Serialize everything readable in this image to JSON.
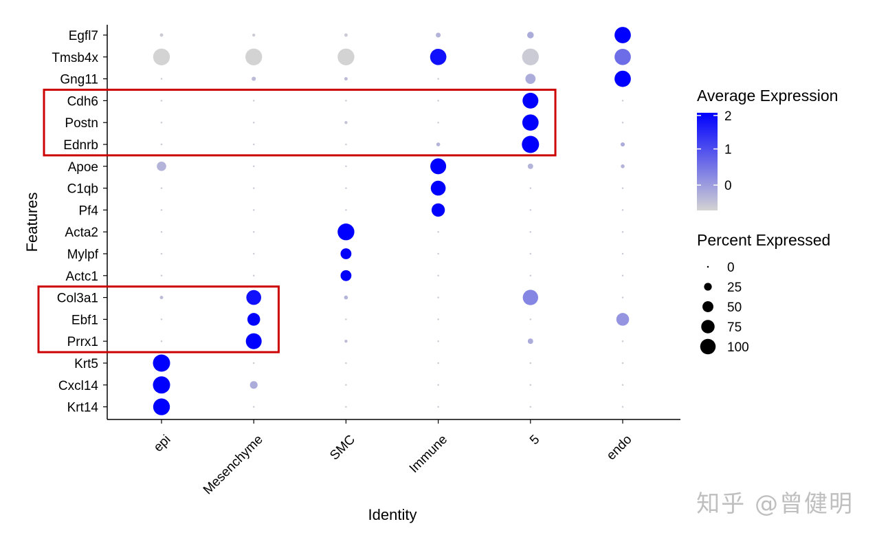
{
  "chart_data": {
    "type": "scatter",
    "subtype": "dot-plot",
    "title": "",
    "xlabel": "Identity",
    "ylabel": "Features",
    "categories": [
      "epi",
      "Mesenchyme",
      "SMC",
      "Immune",
      "5",
      "endo"
    ],
    "features": [
      "Egfl7",
      "Tmsb4x",
      "Gng11",
      "Cdh6",
      "Postn",
      "Ednrb",
      "Apoe",
      "C1qb",
      "Pf4",
      "Acta2",
      "Mylpf",
      "Actc1",
      "Col3a1",
      "Ebf1",
      "Prrx1",
      "Krt5",
      "Cxcl14",
      "Krt14"
    ],
    "points": [
      {
        "feature": "Egfl7",
        "values": [
          [
            -0.6,
            4
          ],
          [
            -0.6,
            3
          ],
          [
            -0.6,
            4
          ],
          [
            -0.3,
            8
          ],
          [
            -0.2,
            15
          ],
          [
            2.0,
            90
          ]
        ]
      },
      {
        "feature": "Tmsb4x",
        "values": [
          [
            -0.7,
            95
          ],
          [
            -0.7,
            95
          ],
          [
            -0.7,
            95
          ],
          [
            1.8,
            90
          ],
          [
            -0.6,
            95
          ],
          [
            0.6,
            90
          ]
        ]
      },
      {
        "feature": "Gng11",
        "values": [
          [
            -0.6,
            1
          ],
          [
            -0.4,
            6
          ],
          [
            -0.4,
            4
          ],
          [
            -0.6,
            1
          ],
          [
            -0.2,
            35
          ],
          [
            2.0,
            90
          ]
        ]
      },
      {
        "feature": "Cdh6",
        "values": [
          [
            -0.6,
            1
          ],
          [
            -0.6,
            1
          ],
          [
            -0.6,
            1
          ],
          [
            -0.6,
            1
          ],
          [
            2.0,
            85
          ],
          [
            -0.6,
            1
          ]
        ]
      },
      {
        "feature": "Postn",
        "values": [
          [
            -0.6,
            1
          ],
          [
            -0.6,
            1
          ],
          [
            -0.5,
            3
          ],
          [
            -0.6,
            1
          ],
          [
            2.0,
            90
          ],
          [
            -0.6,
            1
          ]
        ]
      },
      {
        "feature": "Ednrb",
        "values": [
          [
            -0.6,
            1
          ],
          [
            -0.6,
            1
          ],
          [
            -0.6,
            1
          ],
          [
            -0.3,
            5
          ],
          [
            2.0,
            100
          ],
          [
            -0.2,
            6
          ]
        ]
      },
      {
        "feature": "Apoe",
        "values": [
          [
            -0.3,
            30
          ],
          [
            -0.6,
            1
          ],
          [
            -0.6,
            1
          ],
          [
            2.0,
            85
          ],
          [
            -0.3,
            10
          ],
          [
            -0.3,
            5
          ]
        ]
      },
      {
        "feature": "C1qb",
        "values": [
          [
            -0.6,
            1
          ],
          [
            -0.6,
            1
          ],
          [
            -0.6,
            1
          ],
          [
            2.0,
            75
          ],
          [
            -0.6,
            1
          ],
          [
            -0.6,
            1
          ]
        ]
      },
      {
        "feature": "Pf4",
        "values": [
          [
            -0.6,
            1
          ],
          [
            -0.6,
            1
          ],
          [
            -0.6,
            1
          ],
          [
            2.0,
            60
          ],
          [
            -0.6,
            1
          ],
          [
            -0.6,
            1
          ]
        ]
      },
      {
        "feature": "Acta2",
        "values": [
          [
            -0.6,
            1
          ],
          [
            -0.6,
            1
          ],
          [
            2.0,
            95
          ],
          [
            -0.6,
            1
          ],
          [
            -0.6,
            1
          ],
          [
            -0.6,
            1
          ]
        ]
      },
      {
        "feature": "Mylpf",
        "values": [
          [
            -0.6,
            1
          ],
          [
            -0.6,
            1
          ],
          [
            2.0,
            40
          ],
          [
            -0.6,
            1
          ],
          [
            -0.6,
            1
          ],
          [
            -0.6,
            1
          ]
        ]
      },
      {
        "feature": "Actc1",
        "values": [
          [
            -0.6,
            1
          ],
          [
            -0.6,
            1
          ],
          [
            2.0,
            40
          ],
          [
            -0.6,
            1
          ],
          [
            -0.6,
            1
          ],
          [
            -0.6,
            1
          ]
        ]
      },
      {
        "feature": "Col3a1",
        "values": [
          [
            -0.4,
            4
          ],
          [
            1.8,
            75
          ],
          [
            -0.3,
            5
          ],
          [
            -0.6,
            1
          ],
          [
            0.3,
            80
          ],
          [
            -0.6,
            1
          ]
        ]
      },
      {
        "feature": "Ebf1",
        "values": [
          [
            -0.6,
            1
          ],
          [
            2.0,
            55
          ],
          [
            -0.6,
            1
          ],
          [
            -0.6,
            1
          ],
          [
            -0.6,
            1
          ],
          [
            0.1,
            55
          ]
        ]
      },
      {
        "feature": "Prrx1",
        "values": [
          [
            -0.6,
            1
          ],
          [
            2.0,
            85
          ],
          [
            -0.4,
            3
          ],
          [
            -0.6,
            1
          ],
          [
            -0.2,
            10
          ],
          [
            -0.6,
            1
          ]
        ]
      },
      {
        "feature": "Krt5",
        "values": [
          [
            2.0,
            100
          ],
          [
            -0.6,
            1
          ],
          [
            -0.6,
            1
          ],
          [
            -0.6,
            1
          ],
          [
            -0.6,
            1
          ],
          [
            -0.6,
            1
          ]
        ]
      },
      {
        "feature": "Cxcl14",
        "values": [
          [
            2.0,
            100
          ],
          [
            -0.2,
            20
          ],
          [
            -0.6,
            1
          ],
          [
            -0.6,
            1
          ],
          [
            -0.6,
            1
          ],
          [
            -0.6,
            1
          ]
        ]
      },
      {
        "feature": "Krt14",
        "values": [
          [
            2.0,
            95
          ],
          [
            -0.6,
            1
          ],
          [
            -0.6,
            1
          ],
          [
            -0.6,
            1
          ],
          [
            -0.6,
            1
          ],
          [
            -0.6,
            1
          ]
        ]
      }
    ],
    "point_encoding": "[average_expression, percent_expressed]",
    "color_legend": {
      "title": "Average Expression",
      "ticks": [
        "2",
        "1",
        "0"
      ],
      "tick_values": [
        2,
        1,
        0
      ],
      "range": [
        -0.7,
        2
      ],
      "low_color": "#d3d3d3",
      "high_color": "#0000ff"
    },
    "size_legend": {
      "title": "Percent Expressed",
      "labels": [
        "0",
        "25",
        "50",
        "75",
        "100"
      ],
      "values": [
        0,
        25,
        50,
        75,
        100
      ]
    },
    "highlight_boxes": [
      {
        "features": [
          "Cdh6",
          "Postn",
          "Ednrb"
        ],
        "through_category": "5",
        "color": "#cc0000"
      },
      {
        "features": [
          "Col3a1",
          "Ebf1",
          "Prrx1"
        ],
        "through_category": "Mesenchyme",
        "color": "#cc0000"
      }
    ],
    "grid": false,
    "legend_position": "right"
  },
  "watermark": "知乎 @曾健明"
}
